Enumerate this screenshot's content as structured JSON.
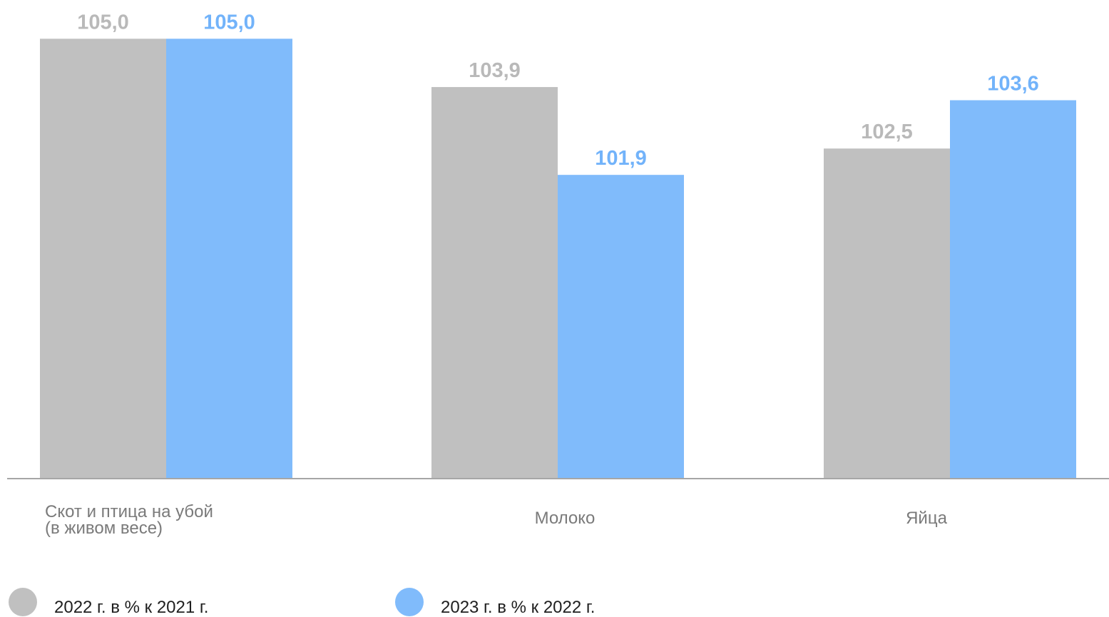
{
  "colors": {
    "series_2022": "#c0c0c0",
    "series_2023": "#80bbfb",
    "label_2022": "#b9b9b9",
    "label_2023": "#72b3fa",
    "axis": "#a6a6a6"
  },
  "chart_data": {
    "type": "bar",
    "title": "",
    "xlabel": "",
    "ylabel": "",
    "grid": false,
    "legend_position": "bottom-left",
    "ylim": [
      95.0,
      105.2
    ],
    "categories": [
      [
        "Скот и птица на убой",
        "(в живом весе)"
      ],
      [
        "Молоко"
      ],
      [
        "Яйца"
      ]
    ],
    "series": [
      {
        "name": "2022 г. в % к 2021 г.",
        "values": [
          105.0,
          103.9,
          102.5
        ],
        "labels": [
          "105,0",
          "103,9",
          "102,5"
        ]
      },
      {
        "name": "2023 г. в % к 2022 г.",
        "values": [
          105.0,
          101.9,
          103.6
        ],
        "labels": [
          "105,0",
          "101,9",
          "103,6"
        ]
      }
    ]
  }
}
